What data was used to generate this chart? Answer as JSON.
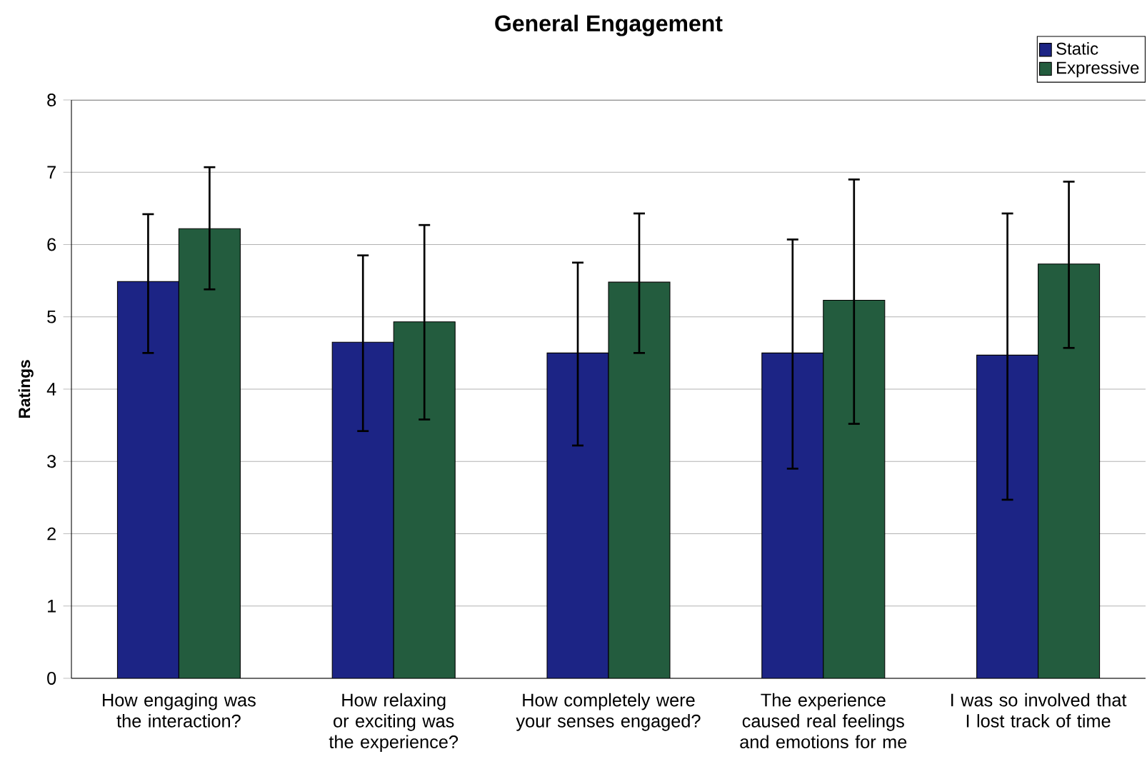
{
  "chart_data": {
    "type": "bar",
    "title": "General Engagement",
    "ylabel": "Ratings",
    "categories": [
      "How engaging was the interaction?",
      "How relaxing or exciting was the experience?",
      "How completely were your senses engaged?",
      "The experience caused real feelings and emotions for me",
      "I was so involved that I lost track of time"
    ],
    "series": [
      {
        "name": "Static",
        "color": "#1c2485",
        "values": [
          5.49,
          4.65,
          4.5,
          4.5,
          4.47
        ],
        "errors": [
          [
            4.5,
            6.42
          ],
          [
            3.42,
            5.85
          ],
          [
            3.22,
            5.75
          ],
          [
            2.9,
            6.07
          ],
          [
            2.47,
            6.43
          ]
        ]
      },
      {
        "name": "Expressive",
        "color": "#235c3e",
        "values": [
          6.22,
          4.93,
          5.48,
          5.23,
          5.73
        ],
        "errors": [
          [
            5.38,
            7.07
          ],
          [
            3.58,
            6.27
          ],
          [
            4.5,
            6.43
          ],
          [
            3.52,
            6.9
          ],
          [
            4.57,
            6.87
          ]
        ]
      }
    ],
    "ylim": [
      0,
      8
    ],
    "yticks": [
      0,
      1,
      2,
      3,
      4,
      5,
      6,
      7,
      8
    ],
    "grid": "y",
    "legend": "top right"
  }
}
